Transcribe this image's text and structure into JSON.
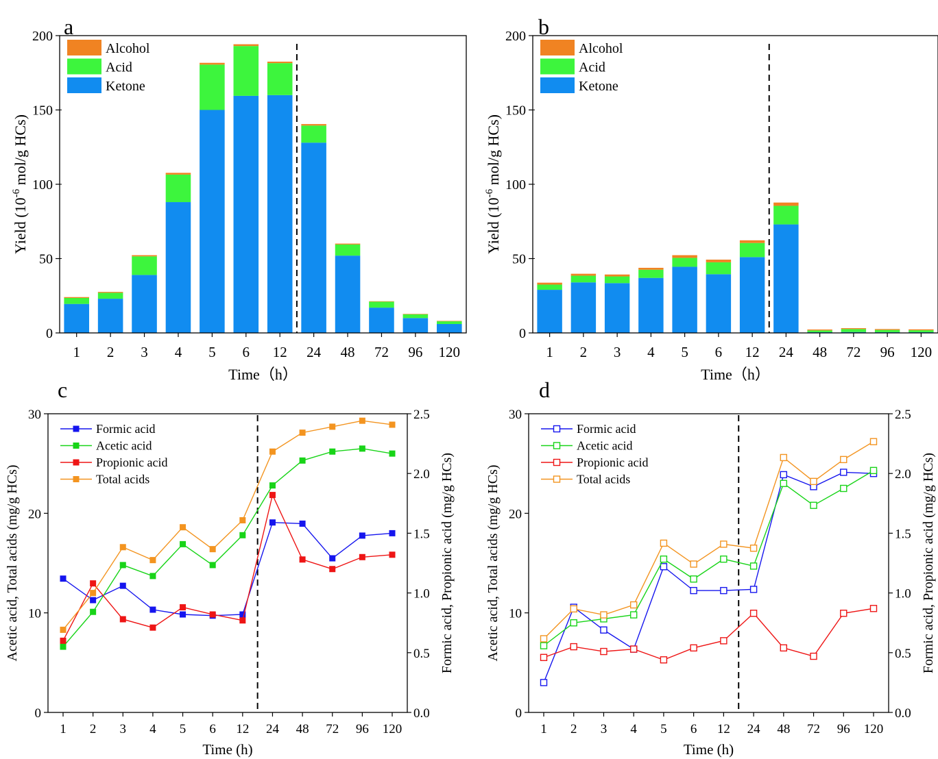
{
  "figure": {
    "panel_letters": [
      "a",
      "b",
      "c",
      "d"
    ]
  },
  "colors": {
    "alcohol": "#f08322",
    "acid": "#3df53d",
    "ketone": "#118cf0",
    "formic": "#1515ee",
    "acetic": "#18d418",
    "propionic": "#ee1515",
    "total": "#f39420"
  },
  "chart_data": [
    {
      "panel": "a",
      "type": "bar",
      "stacked": true,
      "xlabel": "Time（h）",
      "ylabel_main": "Yield (10",
      "ylabel_sup": "-6",
      "ylabel_rest": " mol/g HCs)",
      "ylim": [
        0,
        200
      ],
      "yticks": [
        0,
        50,
        100,
        150,
        200
      ],
      "categories": [
        "1",
        "2",
        "3",
        "4",
        "5",
        "6",
        "12",
        "24",
        "48",
        "72",
        "96",
        "120"
      ],
      "divider_after_index": 6,
      "legend": [
        "Alcohol",
        "Acid",
        "Ketone"
      ],
      "legend_position": "top-left",
      "series": [
        {
          "name": "Ketone",
          "values": [
            19.5,
            23,
            39,
            88,
            150,
            159.5,
            160,
            128,
            52,
            17,
            10,
            6
          ]
        },
        {
          "name": "Acid",
          "values": [
            4,
            4,
            12.5,
            18.5,
            30.5,
            33.5,
            21.5,
            11.5,
            7.5,
            4,
            2.5,
            1.8
          ]
        },
        {
          "name": "Alcohol",
          "values": [
            0.6,
            0.6,
            0.8,
            1.2,
            1.2,
            1.2,
            1,
            1,
            0.6,
            0.3,
            0.3,
            0.3
          ]
        }
      ]
    },
    {
      "panel": "b",
      "type": "bar",
      "stacked": true,
      "xlabel": "Time（h）",
      "ylabel_main": "Yield (10",
      "ylabel_sup": "-6",
      "ylabel_rest": " mol/g HCs)",
      "ylim": [
        0,
        200
      ],
      "yticks": [
        0,
        50,
        100,
        150,
        200
      ],
      "categories": [
        "1",
        "2",
        "3",
        "4",
        "5",
        "6",
        "12",
        "24",
        "48",
        "72",
        "96",
        "120"
      ],
      "divider_after_index": 6,
      "legend": [
        "Alcohol",
        "Acid",
        "Ketone"
      ],
      "legend_position": "top-left",
      "series": [
        {
          "name": "Ketone",
          "values": [
            29,
            34,
            33.5,
            37,
            44.5,
            39.5,
            51,
            73,
            0.5,
            0.6,
            0.5,
            0.5
          ]
        },
        {
          "name": "Acid",
          "values": [
            3.5,
            4.5,
            4.5,
            5.5,
            6,
            8,
            9.5,
            12.5,
            1.2,
            2,
            1.5,
            1.3
          ]
        },
        {
          "name": "Alcohol",
          "values": [
            1.3,
            1.3,
            1.3,
            1.3,
            1.8,
            1.8,
            1.8,
            2.2,
            0.6,
            0.6,
            0.6,
            0.6
          ]
        }
      ]
    },
    {
      "panel": "c",
      "type": "line",
      "marker": "square-filled",
      "xlabel": "Time (h)",
      "ylabel_left": "Acetic acid, Total acids (mg/g HCs)",
      "ylabel_right": "Formic acid, Propionic acid (mg/g HCs)",
      "ylim_left": [
        0,
        30
      ],
      "yticks_left": [
        "0",
        "10",
        "20",
        "30"
      ],
      "ylim_right": [
        0,
        2.5
      ],
      "yticks_right": [
        "0.0",
        "0.5",
        "1.0",
        "1.5",
        "2.0",
        "2.5"
      ],
      "categories": [
        "1",
        "2",
        "3",
        "4",
        "5",
        "6",
        "12",
        "24",
        "48",
        "72",
        "96",
        "120"
      ],
      "divider_after_index": 6,
      "legend_position": "top-left",
      "series": [
        {
          "name": "Formic acid",
          "axis": "right",
          "values": [
            1.12,
            0.94,
            1.06,
            0.86,
            0.82,
            0.81,
            0.82,
            1.59,
            1.58,
            1.29,
            1.48,
            1.5
          ]
        },
        {
          "name": "Acetic acid",
          "axis": "left",
          "values": [
            6.6,
            10.1,
            14.8,
            13.7,
            16.9,
            14.8,
            17.8,
            22.8,
            25.3,
            26.2,
            26.5,
            26.0
          ]
        },
        {
          "name": "Propionic acid",
          "axis": "right",
          "values": [
            0.6,
            1.08,
            0.78,
            0.71,
            0.88,
            0.82,
            0.77,
            1.82,
            1.28,
            1.2,
            1.3,
            1.32
          ]
        },
        {
          "name": "Total acids",
          "axis": "left",
          "values": [
            8.3,
            12.0,
            16.6,
            15.3,
            18.6,
            16.4,
            19.3,
            26.2,
            28.1,
            28.7,
            29.3,
            28.9
          ]
        }
      ]
    },
    {
      "panel": "d",
      "type": "line",
      "marker": "square-open",
      "xlabel": "Time (h)",
      "ylabel_left": "Acetic acid, Total acids (mg/g HCs)",
      "ylabel_right": "Formic acid, Propionic acid (mg/g HCs)",
      "ylim_left": [
        0,
        30
      ],
      "yticks_left": [
        "0",
        "10",
        "20",
        "30"
      ],
      "ylim_right": [
        0,
        2.5
      ],
      "yticks_right": [
        "0.0",
        "0.5",
        "1.0",
        "1.5",
        "2.0",
        "2.5"
      ],
      "categories": [
        "1",
        "2",
        "3",
        "4",
        "5",
        "6",
        "12",
        "24",
        "48",
        "72",
        "96",
        "120"
      ],
      "divider_after_index": 6,
      "legend_position": "top-left",
      "series": [
        {
          "name": "Formic acid",
          "axis": "right",
          "values": [
            0.25,
            0.88,
            0.69,
            0.53,
            1.22,
            1.02,
            1.02,
            1.03,
            1.99,
            1.89,
            2.01,
            2.0
          ]
        },
        {
          "name": "Acetic acid",
          "axis": "left",
          "values": [
            6.7,
            9.0,
            9.4,
            9.8,
            15.4,
            13.4,
            15.4,
            14.7,
            23.0,
            20.8,
            22.5,
            24.3
          ]
        },
        {
          "name": "Propionic acid",
          "axis": "right",
          "values": [
            0.46,
            0.55,
            0.51,
            0.53,
            0.44,
            0.54,
            0.6,
            0.83,
            0.54,
            0.47,
            0.83,
            0.87
          ]
        },
        {
          "name": "Total acids",
          "axis": "left",
          "values": [
            7.4,
            10.4,
            9.8,
            10.8,
            17.0,
            14.9,
            16.9,
            16.5,
            25.6,
            23.2,
            25.4,
            27.2
          ]
        }
      ]
    }
  ]
}
